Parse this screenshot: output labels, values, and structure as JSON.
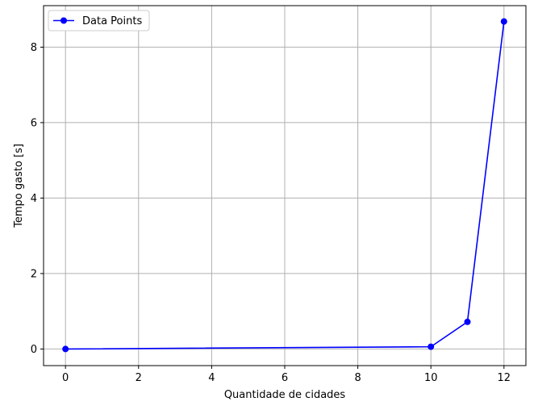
{
  "chart_data": {
    "type": "line",
    "title": "",
    "xlabel": "Quantidade de cidades",
    "ylabel": "Tempo gasto [s]",
    "xlim": [
      -0.6,
      12.6
    ],
    "ylim": [
      -0.44,
      9.1
    ],
    "xticks": [
      0,
      2,
      4,
      6,
      8,
      10,
      12
    ],
    "yticks": [
      0,
      2,
      4,
      6,
      8
    ],
    "grid": true,
    "legend_position": "top-left",
    "series": [
      {
        "name": "Data Points",
        "color": "#0000ff",
        "x": [
          0,
          10,
          11,
          12
        ],
        "y": [
          0.0,
          0.06,
          0.72,
          8.68
        ]
      }
    ]
  }
}
